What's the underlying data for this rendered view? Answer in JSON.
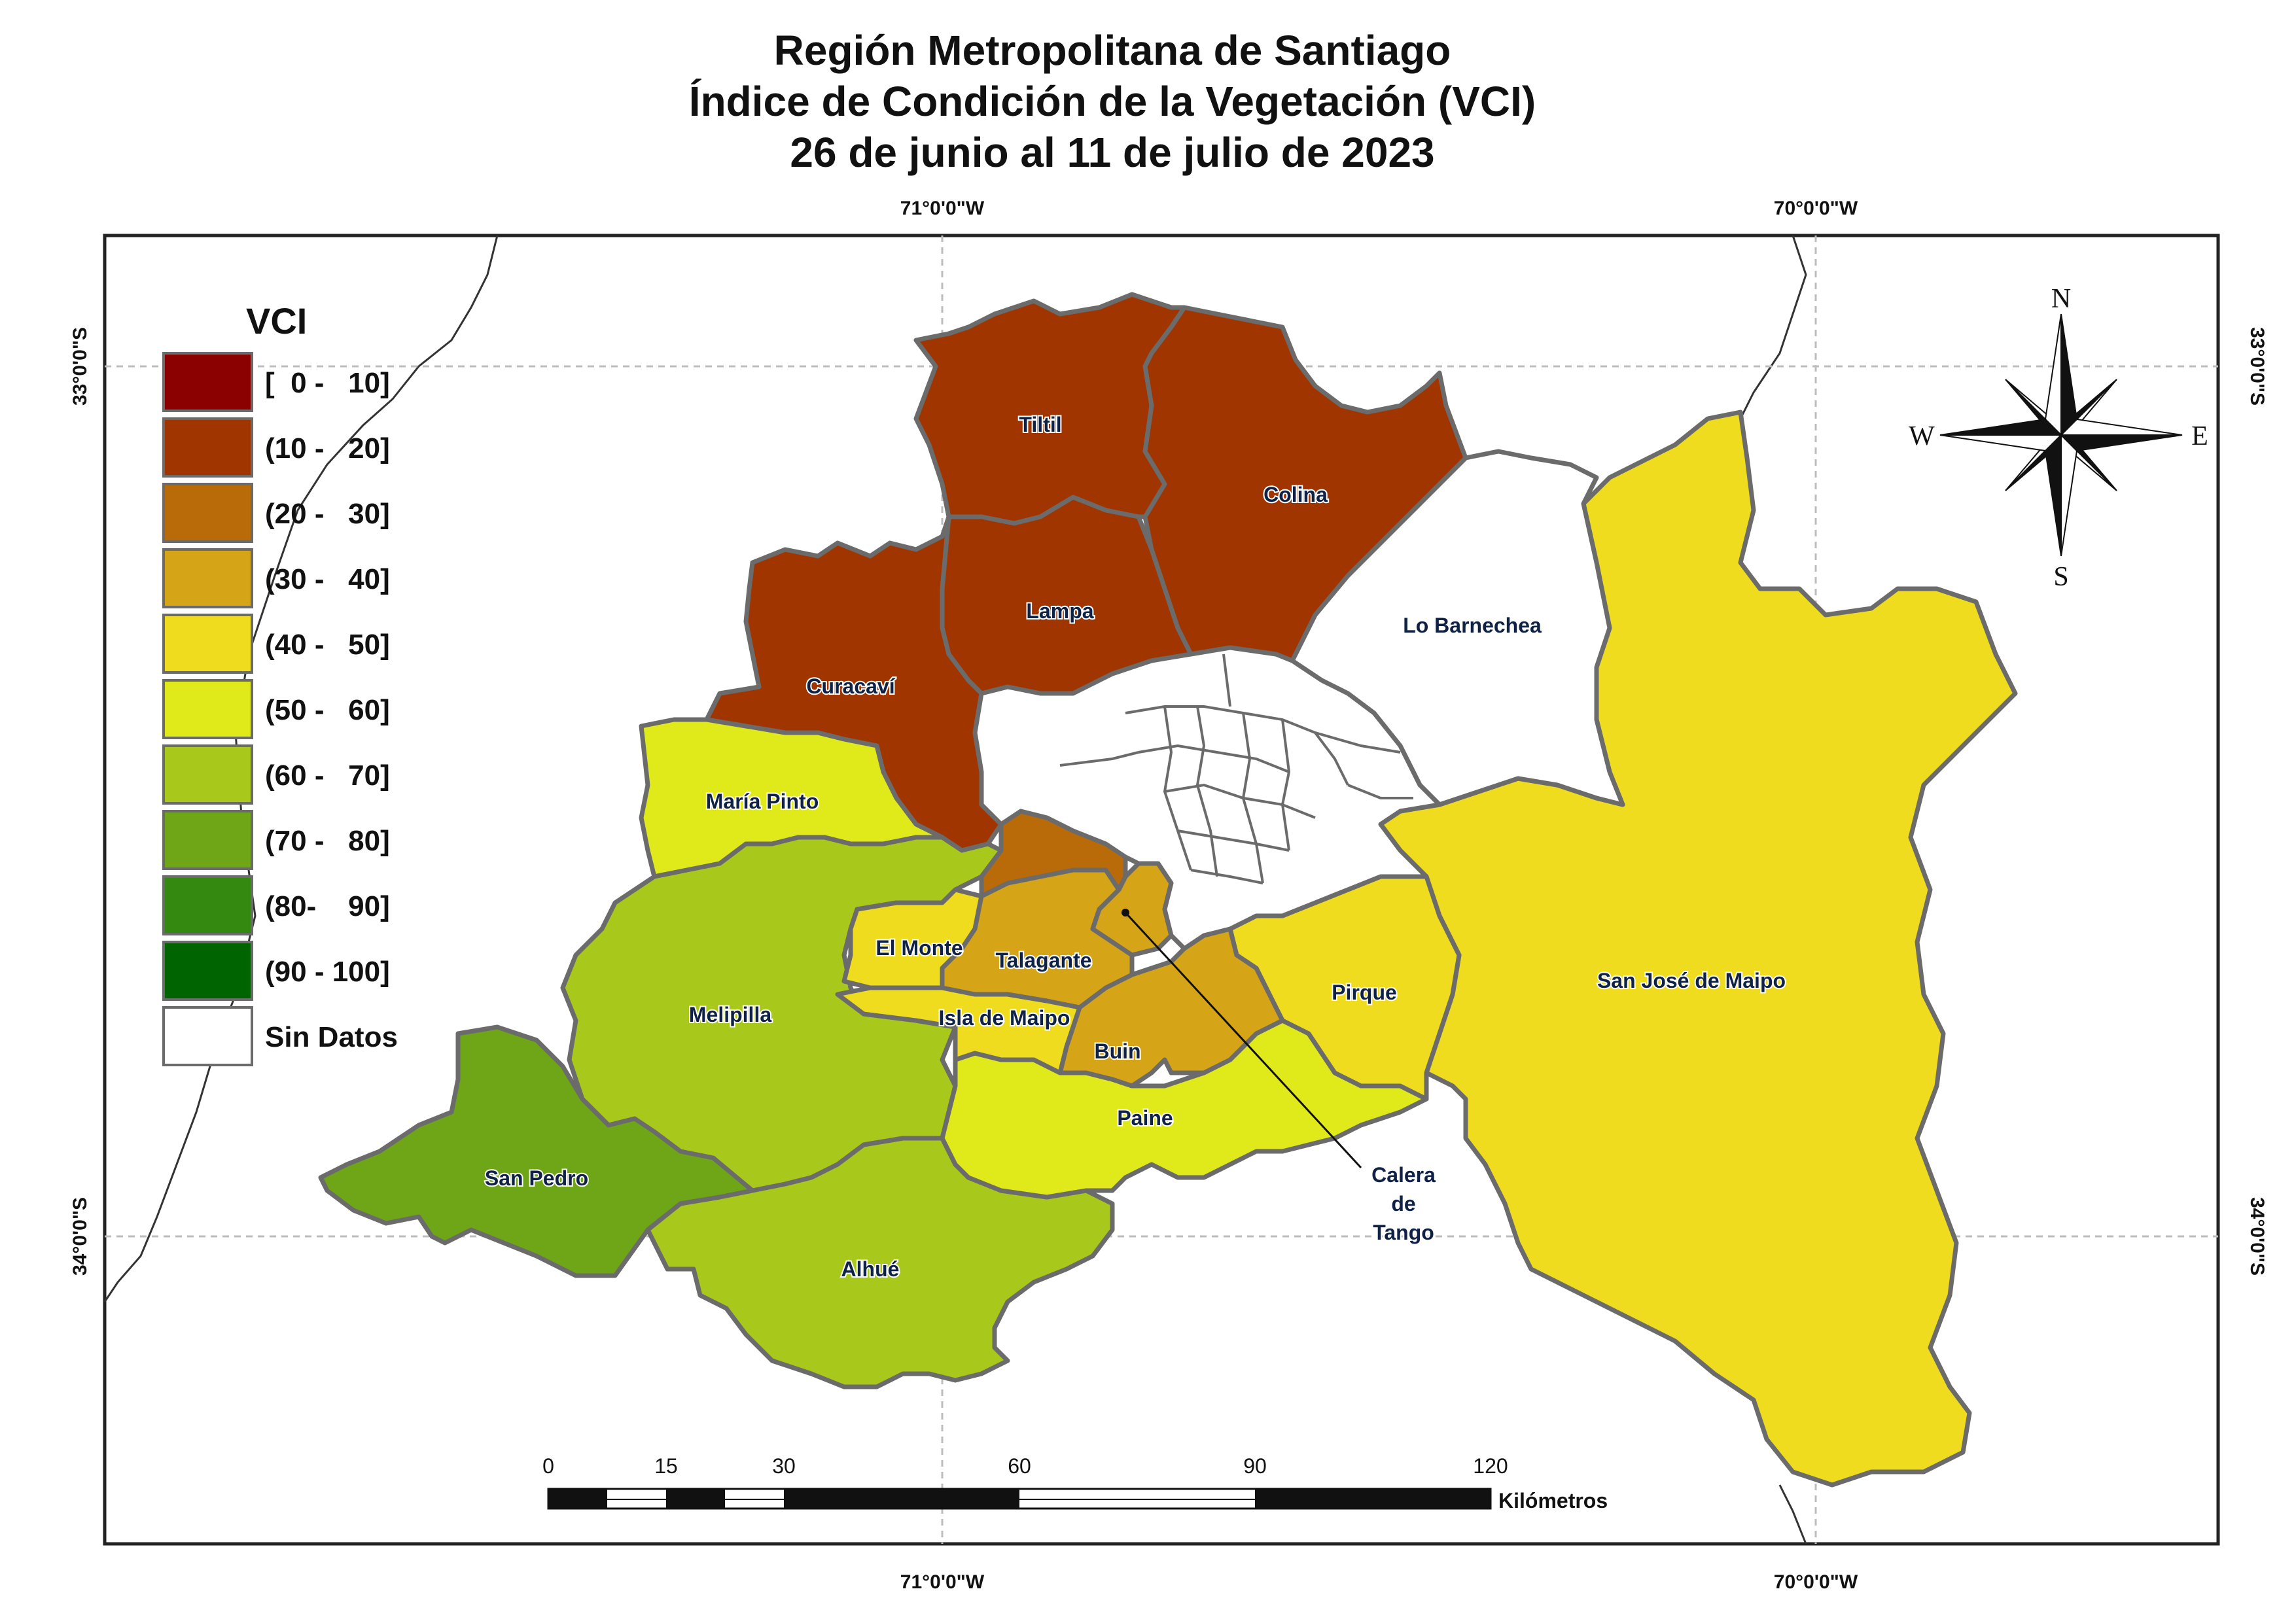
{
  "title": {
    "line1": "Región Metropolitana de Santiago",
    "line2": "Índice de Condición de la Vegetación (VCI)",
    "line3": "26 de junio al 11 de julio de 2023"
  },
  "graticule": {
    "lon_w": "71°0'0\"W",
    "lon_e": "70°0'0\"W",
    "lat_n": "33°0'0\"S",
    "lat_s": "34°0'0\"S"
  },
  "legend": {
    "title": "VCI",
    "classes": [
      {
        "label": "[  0 -   10]",
        "color": "#8b0000"
      },
      {
        "label": "(10 -   20]",
        "color": "#a03500"
      },
      {
        "label": "(20 -   30]",
        "color": "#b96b0a"
      },
      {
        "label": "(30 -   40]",
        "color": "#d6a417"
      },
      {
        "label": "(40 -   50]",
        "color": "#efdc1e"
      },
      {
        "label": "(50 -   60]",
        "color": "#e0ea1a"
      },
      {
        "label": "(60 -   70]",
        "color": "#a8c81c"
      },
      {
        "label": "(70 -   80]",
        "color": "#6fa617"
      },
      {
        "label": "(80-    90]",
        "color": "#348a10"
      },
      {
        "label": "(90 - 100]",
        "color": "#006400"
      },
      {
        "label": "Sin Datos",
        "color": "#ffffff"
      }
    ]
  },
  "municipalities": {
    "tiltil": {
      "name": "Tiltil",
      "color": "#a03500"
    },
    "colina": {
      "name": "Colina",
      "color": "#a03500"
    },
    "lampa": {
      "name": "Lampa",
      "color": "#a03500"
    },
    "curacavi": {
      "name": "Curacaví",
      "color": "#a03500"
    },
    "lo_barnechea": {
      "name": "Lo Barnechea",
      "color": "#ffffff"
    },
    "maria_pinto": {
      "name": "María Pinto",
      "color": "#e0ea1a"
    },
    "melipilla": {
      "name": "Melipilla",
      "color": "#a8c81c"
    },
    "san_pedro": {
      "name": "San Pedro",
      "color": "#6fa617"
    },
    "alhue": {
      "name": "Alhué",
      "color": "#a8c81c"
    },
    "el_monte": {
      "name": "El Monte",
      "color": "#efdc1e"
    },
    "talagante": {
      "name": "Talagante",
      "color": "#d6a417"
    },
    "isla_de_maipo": {
      "name": "Isla de Maipo",
      "color": "#efdc1e"
    },
    "buin": {
      "name": "Buin",
      "color": "#d6a417"
    },
    "paine": {
      "name": "Paine",
      "color": "#e0ea1a"
    },
    "pirque": {
      "name": "Pirque",
      "color": "#efdc1e"
    },
    "san_jose_de_maipo": {
      "name": "San José de Maipo",
      "color": "#efdc1e"
    },
    "padre_hurtado": {
      "color": "#b96b0a"
    },
    "penaflor": {
      "color": "#d6a417"
    },
    "calera_de_tango": {
      "name_lines": [
        "Calera",
        "de",
        "Tango"
      ],
      "color": "#d6a417"
    }
  },
  "compass": {
    "n": "N",
    "s": "S",
    "e": "E",
    "w": "W"
  },
  "scale_bar": {
    "ticks": [
      "0",
      "15",
      "30",
      "60",
      "90",
      "120"
    ],
    "unit": "Kilómetros"
  }
}
